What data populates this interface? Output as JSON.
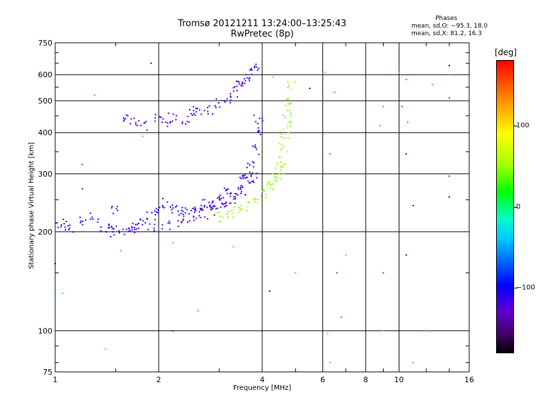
{
  "header": {
    "title_line1": "Tromsø 20121211 13:24:00–13:25:43",
    "title_line2": "RwPretec (8p)"
  },
  "phase_info": {
    "heading": "Phases",
    "line_o": "mean, sd,O: −95.3, 18.0",
    "line_x": "mean, sd,X:  81.2, 16.3"
  },
  "colorbar": {
    "title": "[deg]",
    "range": [
      -180,
      180
    ],
    "tick_labels": [
      "100",
      "0",
      "−100"
    ],
    "tick_values": [
      100,
      0,
      -100
    ],
    "colors": [
      "#ff0000",
      "#ff8000",
      "#ffff00",
      "#a0ff00",
      "#00ff00",
      "#00ffc8",
      "#00c8ff",
      "#0064ff",
      "#0000ff",
      "#6000d0",
      "#400060",
      "#000000"
    ]
  },
  "chart_data": {
    "type": "scatter",
    "title": "Tromsø 20121211 13:24:00–13:25:43",
    "subtitle": "RwPretec (8p)",
    "xlabel": "Frequency [MHz]",
    "ylabel": "Stationary phase Virtual Height [km]",
    "xscale": "log",
    "yscale": "log",
    "xlim": [
      1,
      16
    ],
    "ylim": [
      75,
      750
    ],
    "grid": true,
    "x_ticks": [
      1,
      2,
      4,
      6,
      8,
      10,
      16
    ],
    "x_tick_labels": [
      "1",
      "2",
      "4",
      "6",
      "8",
      "10",
      "16"
    ],
    "y_ticks": [
      75,
      100,
      200,
      300,
      400,
      500,
      600,
      750
    ],
    "y_tick_labels": [
      "75",
      "100",
      "200",
      "300",
      "400",
      "500",
      "600",
      "750"
    ],
    "legend": "colorbar-right",
    "series": [
      {
        "role": "o-mode-lower",
        "phase_deg": -95,
        "points": [
          [
            1.0,
            210
          ],
          [
            1.05,
            212
          ],
          [
            1.1,
            206
          ],
          [
            1.2,
            215
          ],
          [
            1.3,
            220
          ],
          [
            1.4,
            205
          ],
          [
            1.45,
            200
          ],
          [
            1.5,
            232
          ],
          [
            1.6,
            200
          ],
          [
            1.7,
            205
          ],
          [
            1.8,
            215
          ],
          [
            1.9,
            225
          ],
          [
            2.0,
            230
          ],
          [
            2.1,
            245
          ],
          [
            2.2,
            235
          ],
          [
            2.3,
            225
          ],
          [
            2.4,
            230
          ],
          [
            2.5,
            240
          ],
          [
            2.6,
            232
          ],
          [
            2.7,
            245
          ],
          [
            2.8,
            240
          ],
          [
            2.9,
            245
          ],
          [
            3.0,
            250
          ],
          [
            3.1,
            245
          ],
          [
            3.2,
            262
          ],
          [
            3.3,
            255
          ],
          [
            3.4,
            270
          ],
          [
            3.5,
            290
          ],
          [
            3.6,
            300
          ],
          [
            3.7,
            320
          ],
          [
            3.8,
            355
          ],
          [
            3.85,
            400
          ],
          [
            3.9,
            440
          ]
        ]
      },
      {
        "role": "o-mode-upper",
        "phase_deg": -105,
        "points": [
          [
            1.6,
            440
          ],
          [
            1.7,
            432
          ],
          [
            1.8,
            420
          ],
          [
            2.0,
            440
          ],
          [
            2.1,
            430
          ],
          [
            2.2,
            445
          ],
          [
            2.4,
            440
          ],
          [
            2.5,
            455
          ],
          [
            2.6,
            465
          ],
          [
            2.8,
            470
          ],
          [
            3.0,
            490
          ],
          [
            3.2,
            510
          ],
          [
            3.3,
            530
          ],
          [
            3.4,
            555
          ],
          [
            3.5,
            570
          ],
          [
            3.6,
            580
          ],
          [
            3.7,
            620
          ],
          [
            3.8,
            640
          ]
        ]
      },
      {
        "role": "o-mode-baseline",
        "phase_deg": -120,
        "points": [
          [
            1.5,
            202
          ],
          [
            1.7,
            204
          ],
          [
            1.9,
            207
          ],
          [
            2.1,
            210
          ],
          [
            2.3,
            213
          ],
          [
            2.5,
            218
          ],
          [
            2.7,
            225
          ],
          [
            2.9,
            232
          ],
          [
            3.1,
            240
          ],
          [
            3.3,
            252
          ],
          [
            3.5,
            265
          ],
          [
            3.7,
            285
          ],
          [
            3.8,
            300
          ]
        ]
      },
      {
        "role": "x-mode",
        "phase_deg": 80,
        "points": [
          [
            3.0,
            222
          ],
          [
            3.2,
            226
          ],
          [
            3.4,
            232
          ],
          [
            3.6,
            240
          ],
          [
            3.8,
            250
          ],
          [
            4.0,
            262
          ],
          [
            4.2,
            275
          ],
          [
            4.3,
            285
          ],
          [
            4.4,
            295
          ],
          [
            4.5,
            310
          ],
          [
            4.55,
            330
          ],
          [
            4.6,
            360
          ],
          [
            4.65,
            390
          ],
          [
            4.7,
            420
          ],
          [
            4.75,
            460
          ],
          [
            4.8,
            500
          ],
          [
            4.85,
            560
          ]
        ]
      },
      {
        "role": "noise",
        "phase_deg": 40,
        "points": [
          [
            1.05,
            130
          ],
          [
            1.3,
            520
          ],
          [
            1.4,
            88
          ],
          [
            1.55,
            175
          ],
          [
            1.8,
            390
          ],
          [
            2.2,
            185
          ],
          [
            2.6,
            115
          ],
          [
            3.3,
            180
          ],
          [
            4.3,
            590
          ],
          [
            5.0,
            150
          ],
          [
            6.1,
            610
          ],
          [
            6.2,
            98
          ],
          [
            6.3,
            80
          ],
          [
            6.5,
            530
          ],
          [
            7.0,
            170
          ],
          [
            8.8,
            420
          ],
          [
            9.0,
            100
          ],
          [
            10.0,
            610
          ],
          [
            11.0,
            80
          ],
          [
            12.0,
            100
          ],
          [
            14.0,
            600
          ]
        ]
      },
      {
        "role": "noise-dark",
        "phase_deg": -150,
        "points": [
          [
            1.0,
            160
          ],
          [
            1.2,
            270
          ],
          [
            1.9,
            650
          ],
          [
            2.2,
            100
          ],
          [
            4.2,
            132
          ],
          [
            5.5,
            545
          ],
          [
            10.5,
            170
          ],
          [
            10.5,
            345
          ],
          [
            11.0,
            240
          ],
          [
            14.0,
            640
          ],
          [
            14.0,
            255
          ]
        ]
      },
      {
        "role": "noise-cyan",
        "phase_deg": -40,
        "points": [
          [
            1.2,
            320
          ],
          [
            1.35,
            200
          ],
          [
            6.3,
            345
          ],
          [
            6.6,
            150
          ],
          [
            6.8,
            110
          ],
          [
            9.0,
            480
          ],
          [
            9.0,
            150
          ],
          [
            10.2,
            480
          ],
          [
            10.5,
            580
          ],
          [
            10.6,
            430
          ],
          [
            12.5,
            560
          ],
          [
            14.0,
            510
          ],
          [
            14.0,
            295
          ]
        ]
      }
    ]
  }
}
